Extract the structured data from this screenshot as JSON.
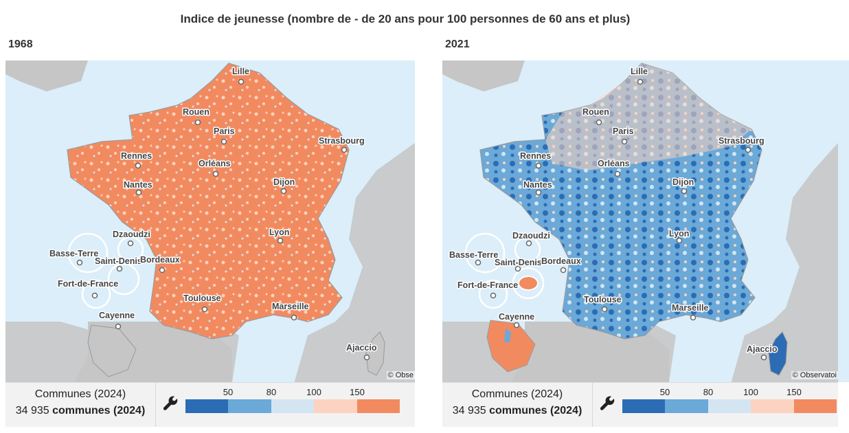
{
  "title": "Indice de jeunesse (nombre de - de 20 ans pour 100 personnes de 60 ans et plus)",
  "panels": [
    {
      "year": "1968",
      "copyright": "© Obse",
      "legend": {
        "line1": "Communes (2024)",
        "count": "34 935",
        "unit": "communes (2024)"
      }
    },
    {
      "year": "2021",
      "copyright": "© Observatoi",
      "legend": {
        "line1": "Communes (2024)",
        "count": "34 935",
        "unit": "communes (2024)"
      }
    }
  ],
  "scale": {
    "ticks": [
      "50",
      "80",
      "100",
      "150"
    ],
    "colors": [
      "#2b6cb5",
      "#6aa9d8",
      "#d4e5f2",
      "#fcd3c0",
      "#f28a60"
    ]
  },
  "cities": [
    "Lille",
    "Rouen",
    "Paris",
    "Strasbourg",
    "Rennes",
    "Orléans",
    "Nantes",
    "Dijon",
    "Lyon",
    "Dzaoudzi",
    "Basse-Terre",
    "Saint-Denis",
    "Bordeaux",
    "Fort-de-France",
    "Toulouse",
    "Marseille",
    "Cayenne",
    "Ajaccio"
  ],
  "colors": {
    "land_outside": "#c6c6c6",
    "sea": "#dbeefa",
    "panel_bg": "#f2f2f2"
  }
}
